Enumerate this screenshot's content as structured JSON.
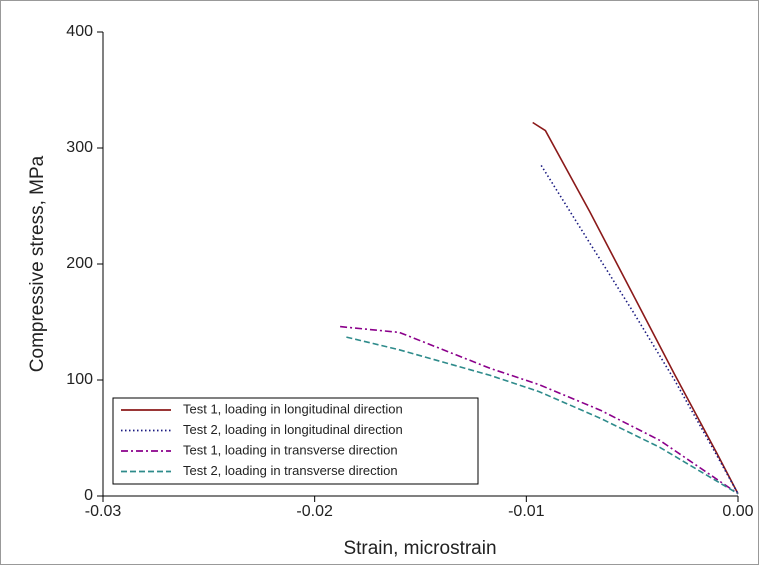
{
  "chart_data": {
    "type": "line",
    "xlabel": "Strain, microstrain",
    "ylabel": "Compressive stress, MPa",
    "xlim": [
      -0.03,
      0
    ],
    "ylim": [
      0,
      400
    ],
    "xticks": [
      -0.03,
      -0.02,
      -0.01,
      {
        "value": 0,
        "label": "0.00"
      }
    ],
    "yticks": [
      0,
      100,
      200,
      300,
      400
    ],
    "legend": "lower left",
    "series": [
      {
        "name": "Test 1, loading in longitudinal direction",
        "color": "#8b1a1a",
        "style": "solid",
        "x": [
          -0.0097,
          -0.0091,
          -0.007,
          -0.005,
          -0.003,
          -0.001,
          0
        ],
        "values": [
          322,
          315,
          245,
          175,
          105,
          37,
          2
        ]
      },
      {
        "name": "Test 2, loading in longitudinal direction",
        "color": "#1a1a80",
        "style": "dotted",
        "x": [
          -0.0093,
          -0.007,
          -0.005,
          -0.003,
          -0.001,
          0
        ],
        "values": [
          285,
          218,
          160,
          100,
          35,
          2
        ]
      },
      {
        "name": "Test 1, loading in transverse direction",
        "color": "#8b008b",
        "style": "dashdot",
        "x": [
          -0.0188,
          -0.016,
          -0.0117,
          -0.0094,
          -0.0065,
          -0.0037,
          0
        ],
        "values": [
          146,
          141,
          110,
          96,
          74,
          48,
          2
        ]
      },
      {
        "name": "Test 2, loading in transverse direction",
        "color": "#2e8b8b",
        "style": "dashed",
        "x": [
          -0.0185,
          -0.016,
          -0.0117,
          -0.0094,
          -0.0065,
          -0.0037,
          0
        ],
        "values": [
          137,
          126,
          104,
          90,
          67,
          42,
          2
        ]
      }
    ]
  }
}
